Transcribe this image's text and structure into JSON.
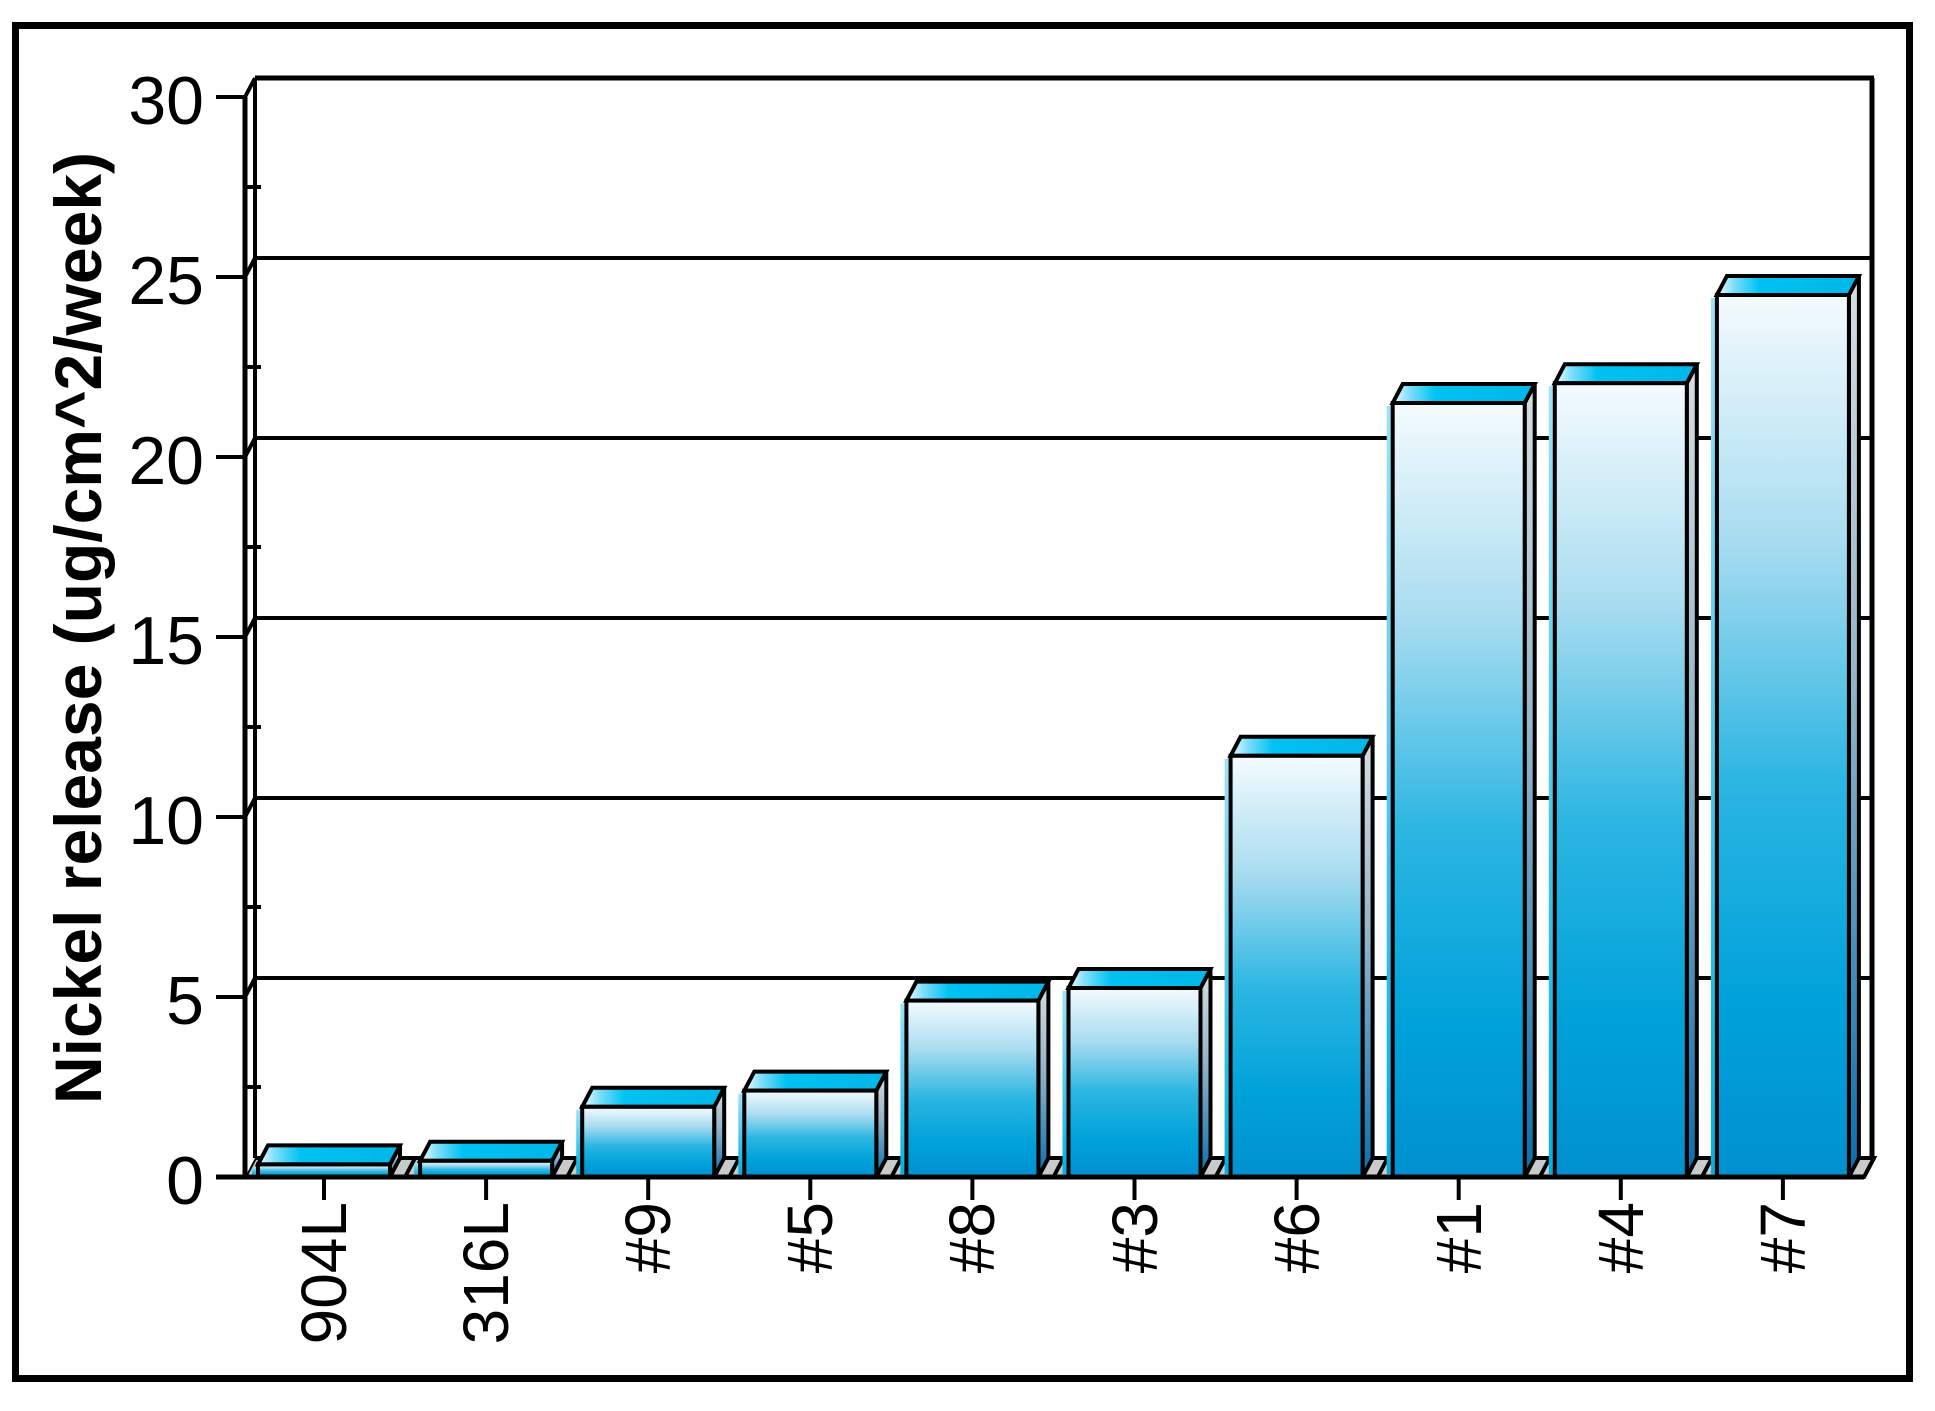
{
  "chart_data": {
    "type": "bar",
    "title": "",
    "xlabel": "",
    "ylabel": "Nickel release (ug/cm^2/week)",
    "categories": [
      "904L",
      "316L",
      "#9",
      "#5",
      "#8",
      "#3",
      "#6",
      "#1",
      "#4",
      "#7"
    ],
    "values": [
      0.35,
      0.45,
      1.95,
      2.4,
      4.9,
      5.25,
      11.7,
      21.5,
      22.05,
      24.5
    ],
    "ylim": [
      0,
      30
    ],
    "yticks": [
      0,
      5,
      10,
      15,
      20,
      25,
      30
    ],
    "ytick_minor_step": 2.5,
    "grid": true,
    "legend_position": "none",
    "style": "3d-extruded-bars",
    "colors": {
      "bar_top_cyan": "#00c2f2",
      "bar_front_light": "#f4fbfe",
      "bar_front_deep": "#0090d0",
      "bar_side_deep": "#0a6fae",
      "floor_gray": "#c8cbcc",
      "outline": "#000000",
      "background": "#ffffff"
    }
  }
}
